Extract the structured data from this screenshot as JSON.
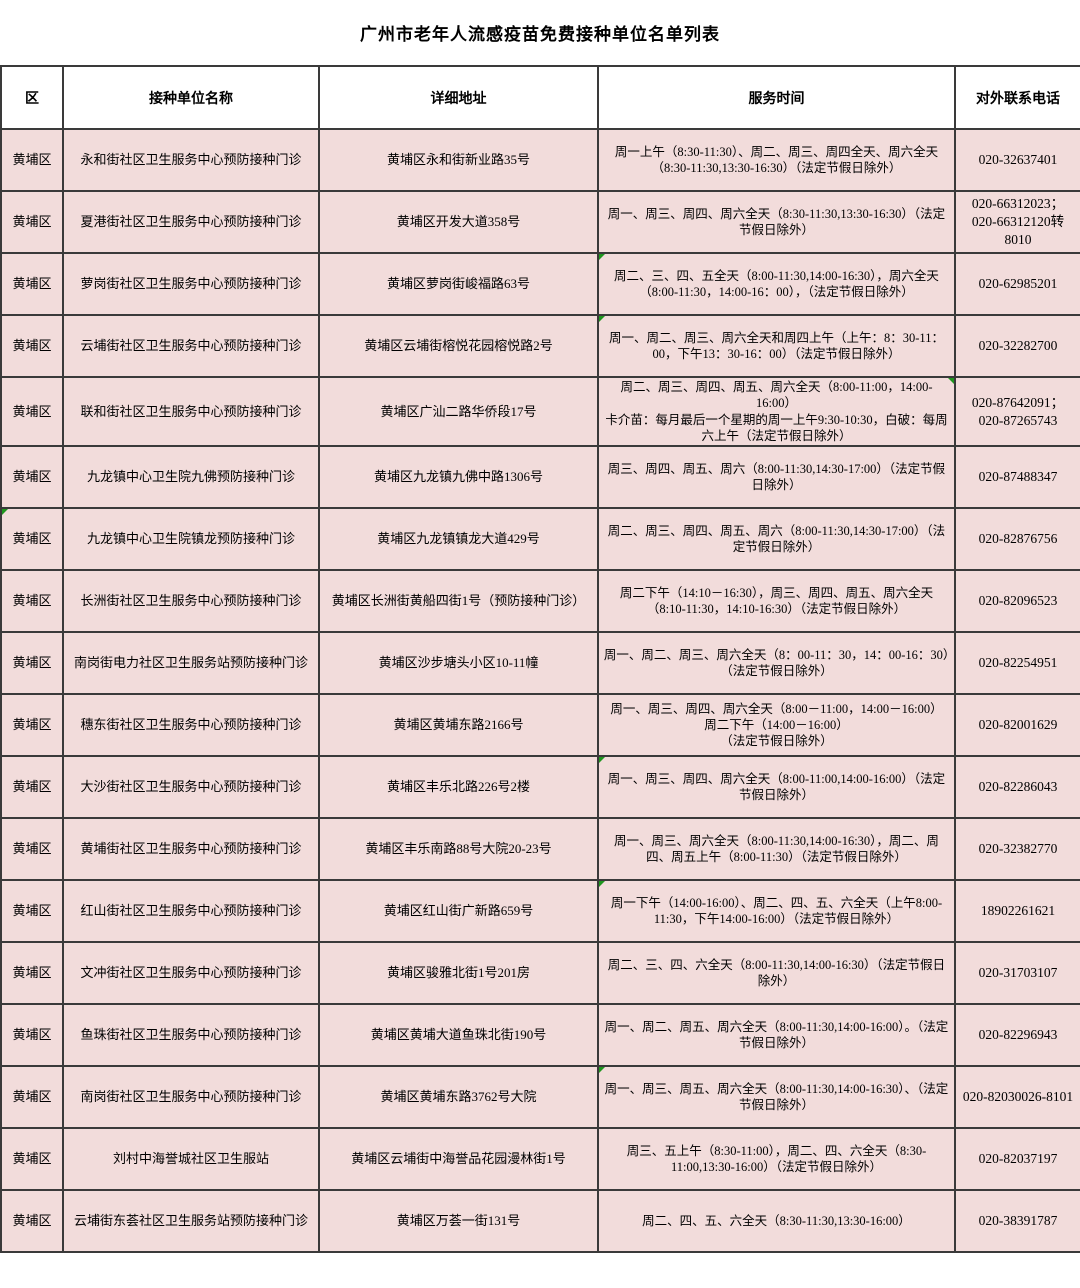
{
  "title": "广州市老年人流感疫苗免费接种单位名单列表",
  "colors": {
    "cell_background": "#f2dcdb",
    "header_background": "#ffffff",
    "border": "#3a3a3a",
    "text": "#000000",
    "flag_marker_green": "#1f961f"
  },
  "table": {
    "headers": [
      "区",
      "接种单位名称",
      "详细地址",
      "服务时间",
      "对外联系电话"
    ],
    "rows": [
      {
        "district": "黄埔区",
        "name": "永和街社区卫生服务中心预防接种门诊",
        "address": "黄埔区永和街新业路35号",
        "time": "周一上午（8:30-11:30）、周二、周三、周四全天、周六全天（8:30-11:30,13:30-16:30）（法定节假日除外）",
        "phone": "020-32637401",
        "marker": ""
      },
      {
        "district": "黄埔区",
        "name": "夏港街社区卫生服务中心预防接种门诊",
        "address": "黄埔区开发大道358号",
        "time": "周一、周三、周四、周六全天（8:30-11:30,13:30-16:30）（法定节假日除外）",
        "phone": "020-66312023；020-66312120转8010",
        "marker": ""
      },
      {
        "district": "黄埔区",
        "name": "萝岗街社区卫生服务中心预防接种门诊",
        "address": "黄埔区萝岗街峻福路63号",
        "time": "周二、三、四、五全天（8:00-11:30,14:00-16:30），周六全天（8:00-11:30，14:00-16：00），（法定节假日除外）",
        "phone": "020-62985201",
        "marker": "time_tl"
      },
      {
        "district": "黄埔区",
        "name": "云埔街社区卫生服务中心预防接种门诊",
        "address": "黄埔区云埔街榕悦花园榕悦路2号",
        "time": "周一、周二、周三、周六全天和周四上午（上午：8：30-11：00，下午13：30-16：00）（法定节假日除外）",
        "phone": "020-32282700",
        "marker": "time_tl"
      },
      {
        "district": "黄埔区",
        "name": "联和街社区卫生服务中心预防接种门诊",
        "address": "黄埔区广汕二路华侨段17号",
        "time": "周二、周三、周四、周五、周六全天（8:00-11:00，14:00-16:00）\n卡介苗：每月最后一个星期的周一上午9:30-10:30，白破：每周六上午（法定节假日除外）",
        "phone": "020-87642091；020-87265743",
        "marker": "time_tr"
      },
      {
        "district": "黄埔区",
        "name": "九龙镇中心卫生院九佛预防接种门诊",
        "address": "黄埔区九龙镇九佛中路1306号",
        "time": "周三、周四、周五、周六（8:00-11:30,14:30-17:00）（法定节假日除外）",
        "phone": "020-87488347",
        "marker": ""
      },
      {
        "district": "黄埔区",
        "name": "九龙镇中心卫生院镇龙预防接种门诊",
        "address": "黄埔区九龙镇镇龙大道429号",
        "time": "周二、周三、周四、周五、周六（8:00-11:30,14:30-17:00）（法定节假日除外）",
        "phone": "020-82876756",
        "marker": "district_tl"
      },
      {
        "district": "黄埔区",
        "name": "长洲街社区卫生服务中心预防接种门诊",
        "address": "黄埔区长洲街黄船四街1号（预防接种门诊）",
        "time": "周二下午（14:10－16:30），周三、周四、周五、周六全天（8:10-11:30，14:10-16:30）（法定节假日除外）",
        "phone": "020-82096523",
        "marker": ""
      },
      {
        "district": "黄埔区",
        "name": "南岗街电力社区卫生服务站预防接种门诊",
        "address": "黄埔区沙步塘头小区10-11幢",
        "time": "周一、周二、周三、周六全天（8：00-11：30，14：00-16：30）（法定节假日除外）",
        "phone": "020-82254951",
        "marker": ""
      },
      {
        "district": "黄埔区",
        "name": "穗东街社区卫生服务中心预防接种门诊",
        "address": "黄埔区黄埔东路2166号",
        "time": "周一、周三、周四、周六全天（8:00－11:00，14:00－16:00）\n周二下午（14:00－16:00）\n（法定节假日除外）",
        "phone": "020-82001629",
        "marker": ""
      },
      {
        "district": "黄埔区",
        "name": "大沙街社区卫生服务中心预防接种门诊",
        "address": "黄埔区丰乐北路226号2楼",
        "time": "周一、周三、周四、周六全天（8:00-11:00,14:00-16:00）（法定节假日除外）",
        "phone": "020-82286043",
        "marker": "time_tl"
      },
      {
        "district": "黄埔区",
        "name": "黄埔街社区卫生服务中心预防接种门诊",
        "address": "黄埔区丰乐南路88号大院20-23号",
        "time": "周一、周三、周六全天（8:00-11:30,14:00-16:30），周二、周四、周五上午（8:00-11:30）（法定节假日除外）",
        "phone": "020-32382770",
        "marker": ""
      },
      {
        "district": "黄埔区",
        "name": "红山街社区卫生服务中心预防接种门诊",
        "address": "黄埔区红山街广新路659号",
        "time": "周一下午（14:00-16:00）、周二、四、五、六全天（上午8:00-11:30，下午14:00-16:00）（法定节假日除外）",
        "phone": "18902261621",
        "marker": "time_tl"
      },
      {
        "district": "黄埔区",
        "name": "文冲街社区卫生服务中心预防接种门诊",
        "address": "黄埔区骏雅北街1号201房",
        "time": "周二、三、四、六全天（8:00-11:30,14:00-16:30）（法定节假日除外）",
        "phone": "020-31703107",
        "marker": ""
      },
      {
        "district": "黄埔区",
        "name": "鱼珠街社区卫生服务中心预防接种门诊",
        "address": "黄埔区黄埔大道鱼珠北街190号",
        "time": "周一、周二、周五、周六全天（8:00-11:30,14:00-16:00）。（法定节假日除外）",
        "phone": "020-82296943",
        "marker": ""
      },
      {
        "district": "黄埔区",
        "name": "南岗街社区卫生服务中心预防接种门诊",
        "address": "黄埔区黄埔东路3762号大院",
        "time": "周一、周三、周五、周六全天（8:00-11:30,14:00-16:30）、（法定节假日除外）",
        "phone": "020-82030026-8101",
        "marker": "time_tl"
      },
      {
        "district": "黄埔区",
        "name": "刘村中海誉城社区卫生服站",
        "address": "黄埔区云埔街中海誉品花园漫林街1号",
        "time": "周三、五上午（8:30-11:00），周二、四、六全天（8:30-11:00,13:30-16:00）（法定节假日除外）",
        "phone": "020-82037197",
        "marker": ""
      },
      {
        "district": "黄埔区",
        "name": "云埔街东荟社区卫生服务站预防接种门诊",
        "address": "黄埔区万荟一街131号",
        "time": "周二、四、五、六全天（8:30-11:30,13:30-16:00）",
        "phone": "020-38391787",
        "marker": ""
      }
    ]
  }
}
